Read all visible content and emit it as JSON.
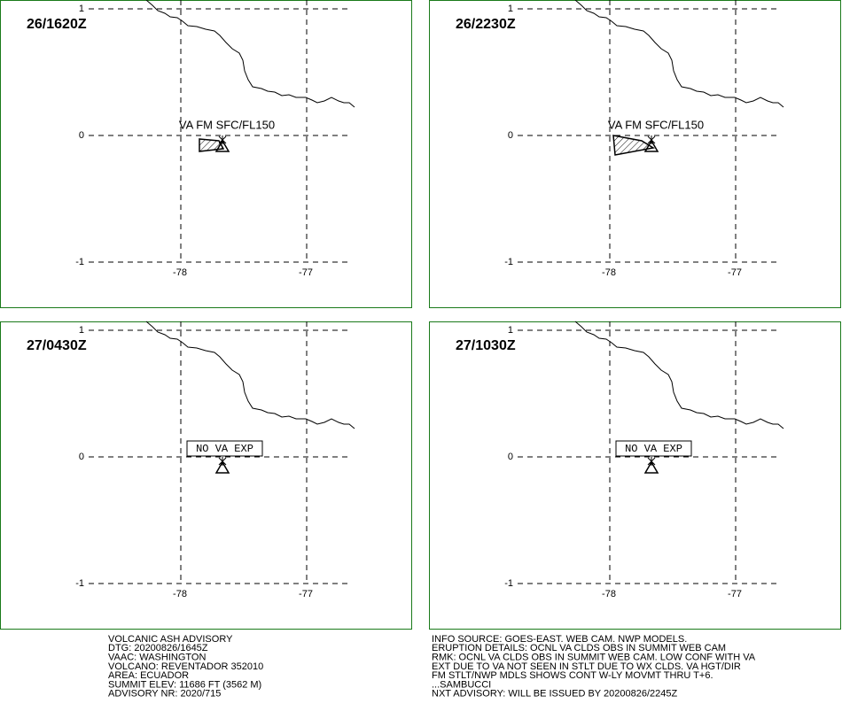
{
  "panels": [
    {
      "time": "26/1620Z",
      "label": "VA FM SFC/FL150"
    },
    {
      "time": "26/2230Z",
      "label": "VA FM SFC/FL150"
    },
    {
      "time": "27/0430Z",
      "box_label": "NO VA EXP"
    },
    {
      "time": "27/1030Z",
      "box_label": "NO VA EXP"
    }
  ],
  "axes": {
    "lat": [
      "1",
      "0",
      "-1"
    ],
    "lon": [
      "-78",
      "-77"
    ]
  },
  "advisory": {
    "left": [
      "VOLCANIC ASH ADVISORY",
      "DTG: 20200826/1645Z",
      "VAAC: WASHINGTON",
      "VOLCANO: REVENTADOR 352010",
      "AREA: ECUADOR",
      "SUMMIT ELEV: 11686 FT (3562 M)",
      "ADVISORY NR: 2020/715"
    ],
    "right": [
      "INFO SOURCE: GOES-EAST. WEB CAM. NWP MODELS.",
      "ERUPTION DETAILS: OCNL VA CLDS OBS IN SUMMIT WEB CAM",
      "RMK: OCNL VA CLDS OBS IN SUMMIT WEB CAM. LOW CONF WITH VA",
      "EXT DUE TO VA NOT SEEN IN STLT DUE TO WX CLDS. VA HGT/DIR",
      "FM STLT/NWP MDLS SHOWS CONT W-LY MOVMT THRU T+6.",
      "...SAMBUCCI",
      "NXT ADVISORY: WILL BE ISSUED BY 20200826/2245Z"
    ]
  }
}
